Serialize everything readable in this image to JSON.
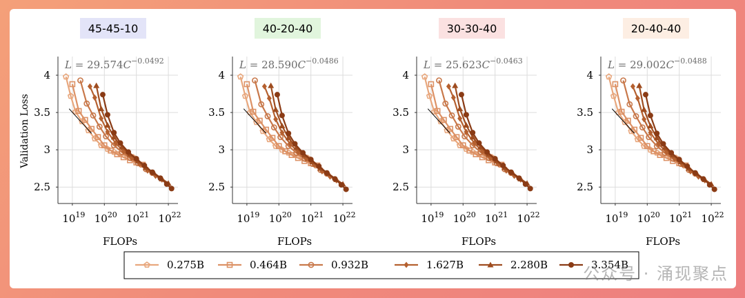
{
  "chart_data": {
    "type": "line",
    "ylabel": "Validation Loss",
    "xlabel": "FLOPs",
    "x_scale": "log",
    "xlim_exp": [
      18.55,
      22.3
    ],
    "ylim": [
      2.28,
      4.25
    ],
    "xticks": [
      {
        "exp": 19,
        "label": "10",
        "sup": "19"
      },
      {
        "exp": 20,
        "label": "10",
        "sup": "20"
      },
      {
        "exp": 21,
        "label": "10",
        "sup": "21"
      },
      {
        "exp": 22,
        "label": "10",
        "sup": "22"
      }
    ],
    "yticks": [
      {
        "v": 2.5,
        "label": "2.5"
      },
      {
        "v": 3,
        "label": "3"
      },
      {
        "v": 3.5,
        "label": "3.5"
      },
      {
        "v": 4,
        "label": "4"
      }
    ],
    "legend": [
      {
        "name": "0.275B",
        "color": "#e8a77d",
        "marker": "pentagon"
      },
      {
        "name": "0.464B",
        "color": "#dc9165",
        "marker": "square"
      },
      {
        "name": "0.932B",
        "color": "#c8784a",
        "marker": "circle"
      },
      {
        "name": "1.627B",
        "color": "#b5602f",
        "marker": "diamond"
      },
      {
        "name": "2.280B",
        "color": "#9e4c1f",
        "marker": "triangle"
      },
      {
        "name": "3.354B",
        "color": "#8a3b15",
        "marker": "filledcircle"
      }
    ],
    "panels": [
      {
        "title": "45-45-10",
        "title_bg": "#e3e4f8",
        "formula_coef": "29.574",
        "formula_exp": "−0.0492",
        "series": [
          {
            "x": [
              18.8,
              18.95,
              19.1,
              19.3,
              19.5,
              19.7,
              19.9,
              20.1,
              20.3,
              20.5,
              20.7,
              20.9
            ],
            "y": [
              3.98,
              3.72,
              3.51,
              3.38,
              3.26,
              3.15,
              3.06,
              3.01,
              2.97,
              2.94,
              2.92,
              2.9
            ]
          },
          {
            "x": [
              19.0,
              19.2,
              19.4,
              19.6,
              19.8,
              20.0,
              20.2,
              20.4,
              20.6,
              20.8,
              21.0,
              21.2
            ],
            "y": [
              3.88,
              3.52,
              3.4,
              3.28,
              3.17,
              3.06,
              2.99,
              2.94,
              2.9,
              2.86,
              2.83,
              2.8
            ]
          },
          {
            "x": [
              19.25,
              19.45,
              19.65,
              19.85,
              20.05,
              20.3,
              20.55,
              20.8,
              21.05,
              21.3,
              21.5
            ],
            "y": [
              3.93,
              3.62,
              3.46,
              3.31,
              3.18,
              3.06,
              2.97,
              2.89,
              2.82,
              2.74,
              2.69
            ]
          },
          {
            "x": [
              19.55,
              19.7,
              19.9,
              20.1,
              20.35,
              20.6,
              20.85,
              21.1,
              21.35,
              21.6,
              21.8
            ],
            "y": [
              3.85,
              3.7,
              3.42,
              3.24,
              3.09,
              2.98,
              2.89,
              2.81,
              2.72,
              2.65,
              2.6
            ]
          },
          {
            "x": [
              19.75,
              19.9,
              20.1,
              20.3,
              20.55,
              20.8,
              21.05,
              21.3,
              21.55,
              21.8,
              22.0
            ],
            "y": [
              3.86,
              3.55,
              3.33,
              3.17,
              3.04,
              2.94,
              2.85,
              2.76,
              2.69,
              2.61,
              2.55
            ]
          },
          {
            "x": [
              19.95,
              20.1,
              20.3,
              20.5,
              20.75,
              21.0,
              21.25,
              21.5,
              21.75,
              21.95,
              22.1
            ],
            "y": [
              3.74,
              3.47,
              3.23,
              3.09,
              2.97,
              2.88,
              2.79,
              2.7,
              2.62,
              2.54,
              2.48
            ]
          }
        ]
      },
      {
        "title": "40-20-40",
        "title_bg": "#e1f5dd",
        "formula_coef": "28.590",
        "formula_exp": "−0.0486",
        "series": [
          {
            "x": [
              18.8,
              18.95,
              19.1,
              19.3,
              19.5,
              19.7,
              19.9,
              20.1,
              20.3,
              20.5,
              20.7,
              20.9
            ],
            "y": [
              3.98,
              3.72,
              3.5,
              3.37,
              3.25,
              3.14,
              3.05,
              3.0,
              2.96,
              2.93,
              2.91,
              2.89
            ]
          },
          {
            "x": [
              19.0,
              19.2,
              19.4,
              19.6,
              19.8,
              20.0,
              20.2,
              20.4,
              20.6,
              20.8,
              21.0,
              21.2
            ],
            "y": [
              3.88,
              3.51,
              3.39,
              3.27,
              3.16,
              3.05,
              2.98,
              2.93,
              2.89,
              2.85,
              2.82,
              2.79
            ]
          },
          {
            "x": [
              19.25,
              19.45,
              19.65,
              19.85,
              20.05,
              20.3,
              20.55,
              20.8,
              21.05,
              21.3,
              21.5
            ],
            "y": [
              3.93,
              3.61,
              3.45,
              3.3,
              3.17,
              3.05,
              2.96,
              2.88,
              2.81,
              2.73,
              2.68
            ]
          },
          {
            "x": [
              19.55,
              19.7,
              19.9,
              20.1,
              20.35,
              20.6,
              20.85,
              21.1,
              21.35,
              21.6,
              21.8
            ],
            "y": [
              3.85,
              3.69,
              3.41,
              3.23,
              3.08,
              2.97,
              2.88,
              2.8,
              2.71,
              2.64,
              2.59
            ]
          },
          {
            "x": [
              19.75,
              19.9,
              20.1,
              20.3,
              20.55,
              20.8,
              21.05,
              21.3,
              21.55,
              21.8,
              22.0
            ],
            "y": [
              3.86,
              3.54,
              3.32,
              3.16,
              3.03,
              2.93,
              2.84,
              2.75,
              2.68,
              2.6,
              2.54
            ]
          },
          {
            "x": [
              19.95,
              20.1,
              20.3,
              20.5,
              20.75,
              21.0,
              21.25,
              21.5,
              21.75,
              21.95,
              22.1
            ],
            "y": [
              3.74,
              3.46,
              3.22,
              3.08,
              2.96,
              2.87,
              2.78,
              2.69,
              2.61,
              2.53,
              2.47
            ]
          }
        ]
      },
      {
        "title": "30-30-40",
        "title_bg": "#fbe1e1",
        "formula_coef": "25.623",
        "formula_exp": "−0.0463",
        "series": [
          {
            "x": [
              18.8,
              18.95,
              19.1,
              19.3,
              19.5,
              19.7,
              19.9,
              20.1,
              20.3,
              20.5,
              20.7,
              20.9
            ],
            "y": [
              3.98,
              3.72,
              3.51,
              3.38,
              3.26,
              3.15,
              3.06,
              3.01,
              2.97,
              2.94,
              2.92,
              2.9
            ]
          },
          {
            "x": [
              19.0,
              19.2,
              19.4,
              19.6,
              19.8,
              20.0,
              20.2,
              20.4,
              20.6,
              20.8,
              21.0,
              21.2
            ],
            "y": [
              3.88,
              3.52,
              3.4,
              3.28,
              3.17,
              3.06,
              2.99,
              2.94,
              2.9,
              2.86,
              2.83,
              2.8
            ]
          },
          {
            "x": [
              19.25,
              19.45,
              19.65,
              19.85,
              20.05,
              20.3,
              20.55,
              20.8,
              21.05,
              21.3,
              21.5
            ],
            "y": [
              3.93,
              3.62,
              3.46,
              3.31,
              3.18,
              3.06,
              2.97,
              2.89,
              2.82,
              2.74,
              2.69
            ]
          },
          {
            "x": [
              19.55,
              19.7,
              19.9,
              20.1,
              20.35,
              20.6,
              20.85,
              21.1,
              21.35,
              21.6,
              21.8
            ],
            "y": [
              3.85,
              3.7,
              3.42,
              3.24,
              3.09,
              2.98,
              2.89,
              2.81,
              2.72,
              2.65,
              2.6
            ]
          },
          {
            "x": [
              19.75,
              19.9,
              20.1,
              20.3,
              20.55,
              20.8,
              21.05,
              21.3,
              21.55,
              21.8,
              22.0
            ],
            "y": [
              3.86,
              3.55,
              3.33,
              3.17,
              3.04,
              2.94,
              2.85,
              2.76,
              2.69,
              2.61,
              2.55
            ]
          },
          {
            "x": [
              19.95,
              20.1,
              20.3,
              20.5,
              20.75,
              21.0,
              21.25,
              21.5,
              21.75,
              21.95,
              22.1
            ],
            "y": [
              3.74,
              3.47,
              3.23,
              3.09,
              2.97,
              2.88,
              2.79,
              2.7,
              2.62,
              2.54,
              2.48
            ]
          }
        ]
      },
      {
        "title": "20-40-40",
        "title_bg": "#fdeee3",
        "formula_coef": "29.002",
        "formula_exp": "−0.0488",
        "series": [
          {
            "x": [
              18.8,
              18.95,
              19.1,
              19.3,
              19.5,
              19.7,
              19.9,
              20.1,
              20.3,
              20.5,
              20.7,
              20.9
            ],
            "y": [
              3.98,
              3.72,
              3.5,
              3.37,
              3.25,
              3.14,
              3.05,
              3.0,
              2.96,
              2.93,
              2.91,
              2.89
            ]
          },
          {
            "x": [
              19.0,
              19.2,
              19.4,
              19.6,
              19.8,
              20.0,
              20.2,
              20.4,
              20.6,
              20.8,
              21.0,
              21.2
            ],
            "y": [
              3.88,
              3.51,
              3.39,
              3.27,
              3.16,
              3.05,
              2.98,
              2.93,
              2.89,
              2.85,
              2.82,
              2.79
            ]
          },
          {
            "x": [
              19.25,
              19.45,
              19.65,
              19.85,
              20.05,
              20.3,
              20.55,
              20.8,
              21.05,
              21.3,
              21.5
            ],
            "y": [
              3.93,
              3.61,
              3.45,
              3.3,
              3.17,
              3.05,
              2.96,
              2.88,
              2.81,
              2.73,
              2.68
            ]
          },
          {
            "x": [
              19.55,
              19.7,
              19.9,
              20.1,
              20.35,
              20.6,
              20.85,
              21.1,
              21.35,
              21.6,
              21.8
            ],
            "y": [
              3.85,
              3.69,
              3.41,
              3.23,
              3.08,
              2.97,
              2.88,
              2.8,
              2.71,
              2.64,
              2.59
            ]
          },
          {
            "x": [
              19.75,
              19.9,
              20.1,
              20.3,
              20.55,
              20.8,
              21.05,
              21.3,
              21.55,
              21.8,
              22.0
            ],
            "y": [
              3.86,
              3.54,
              3.32,
              3.16,
              3.03,
              2.93,
              2.84,
              2.75,
              2.68,
              2.6,
              2.54
            ]
          },
          {
            "x": [
              19.95,
              20.1,
              20.3,
              20.5,
              20.75,
              21.0,
              21.25,
              21.5,
              21.75,
              21.95,
              22.1
            ],
            "y": [
              3.74,
              3.46,
              3.22,
              3.08,
              2.96,
              2.87,
              2.78,
              2.69,
              2.61,
              2.53,
              2.47
            ]
          }
        ]
      }
    ],
    "fit_line": {
      "x": [
        18.9,
        19.6
      ],
      "y": [
        3.55,
        3.22
      ]
    }
  },
  "watermark": "公众号 · 涌现聚点"
}
